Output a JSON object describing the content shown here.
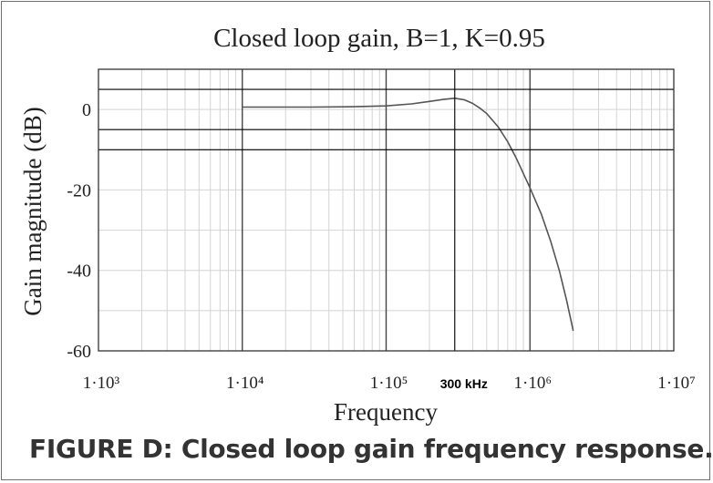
{
  "chart_data": {
    "type": "line",
    "title": "Closed loop gain, B=1, K=0.95",
    "xlabel": "Frequency",
    "ylabel": "Gain magnitude (dB)",
    "x_scale": "log",
    "xlim": [
      1000,
      10000000
    ],
    "ylim": [
      -60,
      10
    ],
    "x_ticks": [
      {
        "value": 1000,
        "label": "1·10³"
      },
      {
        "value": 10000,
        "label": "1·10⁴"
      },
      {
        "value": 100000,
        "label": "1·10⁵"
      },
      {
        "value": 1000000,
        "label": "1·10⁶"
      },
      {
        "value": 10000000,
        "label": "1·10⁷"
      }
    ],
    "y_ticks": [
      {
        "value": 0,
        "label": "0"
      },
      {
        "value": -20,
        "label": "-20"
      },
      {
        "value": -40,
        "label": "-40"
      },
      {
        "value": -60,
        "label": "-60"
      }
    ],
    "grid": true,
    "series": [
      {
        "x": [
          10000,
          30000,
          60000,
          100000,
          150000,
          200000,
          250000,
          300000,
          350000,
          400000,
          450000,
          500000,
          600000,
          700000,
          800000,
          1000000,
          1200000,
          1400000,
          1600000,
          1800000,
          2000000
        ],
        "y": [
          0.6,
          0.6,
          0.7,
          0.9,
          1.4,
          2.0,
          2.5,
          2.8,
          2.4,
          1.5,
          0.3,
          -1.0,
          -4.3,
          -8.0,
          -12.0,
          -19.5,
          -26.0,
          -33.0,
          -40.0,
          -47.5,
          -55.0
        ]
      }
    ],
    "annotations": [
      {
        "type": "vertical-line",
        "x": 300000,
        "label": "300 kHz"
      },
      {
        "type": "horizontal-line",
        "y": 5
      },
      {
        "type": "horizontal-line",
        "y": -5
      },
      {
        "type": "horizontal-line",
        "y": -10
      }
    ],
    "colors": {
      "curve": "#555555",
      "marker_lines": "#000000",
      "major_grid": "#444444",
      "minor_grid": "#d4d4d4",
      "plot_border": "#333333"
    }
  },
  "caption": "FIGURE D: Closed loop gain frequency response."
}
